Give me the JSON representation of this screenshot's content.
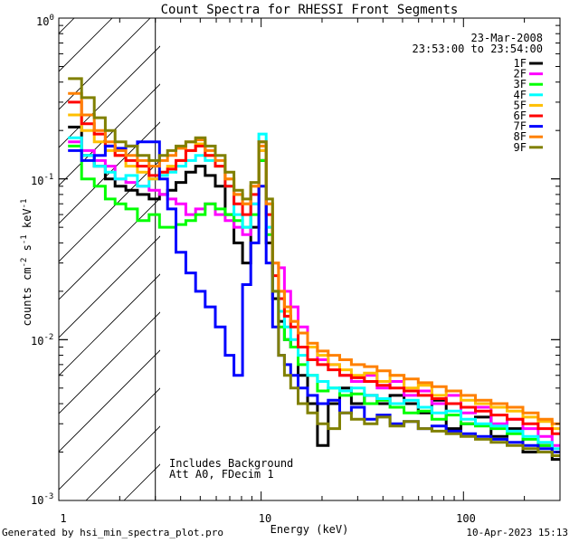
{
  "chart_data": {
    "type": "line",
    "title": "Count Spectra for RHESSI Front Segments",
    "xlabel": "Energy (keV)",
    "ylabel": "counts cm-2 s-1 keV-1",
    "xscale": "log",
    "yscale": "log",
    "xlim": [
      1,
      300
    ],
    "ylim": [
      0.001,
      1
    ],
    "x_tick_labels": [
      "1",
      "10",
      "100"
    ],
    "y_tick_labels": [
      "10^0",
      "10^-1",
      "10^-2",
      "10^-3"
    ],
    "date": "23-Mar-2008",
    "time_range": "23:53:00 to 23:54:00",
    "annotation_lines": [
      "Includes Background",
      "Att A0, FDecim 1"
    ],
    "hatched_region_keV": [
      1,
      3
    ],
    "legend_position": "top-right",
    "energy_keV": [
      1.2,
      1.4,
      1.6,
      1.8,
      2.0,
      2.3,
      2.6,
      3.0,
      3.3,
      3.6,
      4.0,
      4.5,
      5.0,
      5.6,
      6.3,
      7.0,
      7.7,
      8.5,
      9.3,
      10.2,
      11.0,
      11.8,
      12.6,
      13.5,
      14.5,
      16,
      18,
      20,
      23,
      26,
      30,
      35,
      40,
      47,
      55,
      65,
      75,
      90,
      105,
      125,
      150,
      180,
      215,
      255,
      295
    ],
    "series": [
      {
        "name": "1F",
        "color": "#000000",
        "values": [
          0.21,
          0.14,
          0.12,
          0.1,
          0.09,
          0.085,
          0.08,
          0.075,
          0.08,
          0.085,
          0.095,
          0.11,
          0.12,
          0.105,
          0.09,
          0.06,
          0.04,
          0.03,
          0.05,
          0.13,
          0.04,
          0.018,
          0.013,
          0.01,
          0.009,
          0.006,
          0.004,
          0.0022,
          0.004,
          0.005,
          0.004,
          0.0045,
          0.004,
          0.0045,
          0.004,
          0.0035,
          0.0042,
          0.0028,
          0.003,
          0.0033,
          0.0025,
          0.0028,
          0.002,
          0.0022,
          0.0018
        ]
      },
      {
        "name": "2F",
        "color": "#ff00ff",
        "values": [
          0.17,
          0.15,
          0.13,
          0.12,
          0.1,
          0.095,
          0.09,
          0.085,
          0.08,
          0.075,
          0.07,
          0.06,
          0.065,
          0.07,
          0.06,
          0.055,
          0.05,
          0.045,
          0.07,
          0.15,
          0.05,
          0.03,
          0.028,
          0.02,
          0.016,
          0.012,
          0.009,
          0.0075,
          0.007,
          0.006,
          0.0055,
          0.006,
          0.005,
          0.0055,
          0.0045,
          0.0048,
          0.004,
          0.0045,
          0.0035,
          0.0038,
          0.003,
          0.0032,
          0.0028,
          0.0025,
          0.0022
        ]
      },
      {
        "name": "3F",
        "color": "#00ff00",
        "values": [
          0.16,
          0.1,
          0.09,
          0.075,
          0.07,
          0.065,
          0.055,
          0.06,
          0.05,
          0.05,
          0.052,
          0.055,
          0.06,
          0.07,
          0.065,
          0.06,
          0.055,
          0.05,
          0.06,
          0.13,
          0.045,
          0.02,
          0.012,
          0.01,
          0.009,
          0.007,
          0.006,
          0.0048,
          0.005,
          0.0045,
          0.0046,
          0.004,
          0.0042,
          0.0038,
          0.0035,
          0.0036,
          0.0032,
          0.0034,
          0.003,
          0.0029,
          0.0028,
          0.0026,
          0.0024,
          0.0022,
          0.002
        ]
      },
      {
        "name": "4F",
        "color": "#00ffff",
        "values": [
          0.18,
          0.14,
          0.12,
          0.11,
          0.1,
          0.105,
          0.09,
          0.1,
          0.105,
          0.11,
          0.12,
          0.13,
          0.14,
          0.13,
          0.12,
          0.09,
          0.06,
          0.05,
          0.07,
          0.19,
          0.05,
          0.02,
          0.015,
          0.012,
          0.01,
          0.008,
          0.006,
          0.0055,
          0.005,
          0.0048,
          0.005,
          0.0045,
          0.0043,
          0.004,
          0.0042,
          0.0038,
          0.0035,
          0.0036,
          0.0032,
          0.003,
          0.0029,
          0.0027,
          0.0025,
          0.0023,
          0.0021
        ]
      },
      {
        "name": "5F",
        "color": "#ffbf00",
        "values": [
          0.25,
          0.2,
          0.17,
          0.15,
          0.14,
          0.12,
          0.11,
          0.1,
          0.11,
          0.12,
          0.13,
          0.15,
          0.165,
          0.14,
          0.12,
          0.1,
          0.08,
          0.07,
          0.09,
          0.15,
          0.07,
          0.03,
          0.02,
          0.015,
          0.013,
          0.011,
          0.009,
          0.008,
          0.007,
          0.0065,
          0.006,
          0.0062,
          0.0055,
          0.006,
          0.005,
          0.0052,
          0.0045,
          0.0048,
          0.0042,
          0.004,
          0.0038,
          0.0036,
          0.0033,
          0.0031,
          0.0028
        ]
      },
      {
        "name": "6F",
        "color": "#ff0000",
        "values": [
          0.3,
          0.22,
          0.19,
          0.16,
          0.14,
          0.13,
          0.12,
          0.105,
          0.11,
          0.115,
          0.13,
          0.15,
          0.16,
          0.14,
          0.12,
          0.09,
          0.07,
          0.06,
          0.08,
          0.17,
          0.06,
          0.025,
          0.018,
          0.014,
          0.012,
          0.009,
          0.0075,
          0.007,
          0.0065,
          0.006,
          0.0058,
          0.0055,
          0.0052,
          0.005,
          0.0048,
          0.0045,
          0.0043,
          0.004,
          0.0038,
          0.0036,
          0.0034,
          0.0032,
          0.003,
          0.0028,
          0.0026
        ]
      },
      {
        "name": "7F",
        "color": "#0000ff",
        "values": [
          0.15,
          0.13,
          0.14,
          0.16,
          0.155,
          0.16,
          0.17,
          0.17,
          0.1,
          0.065,
          0.035,
          0.026,
          0.02,
          0.016,
          0.012,
          0.008,
          0.006,
          0.022,
          0.04,
          0.09,
          0.03,
          0.012,
          0.008,
          0.007,
          0.006,
          0.005,
          0.0045,
          0.004,
          0.0042,
          0.0035,
          0.0038,
          0.0032,
          0.0034,
          0.003,
          0.0031,
          0.0028,
          0.0029,
          0.0027,
          0.0026,
          0.0025,
          0.0024,
          0.0023,
          0.0022,
          0.0021,
          0.002
        ]
      },
      {
        "name": "8F",
        "color": "#ff8000",
        "values": [
          0.34,
          0.25,
          0.2,
          0.17,
          0.15,
          0.14,
          0.13,
          0.12,
          0.13,
          0.14,
          0.155,
          0.17,
          0.175,
          0.15,
          0.13,
          0.1,
          0.08,
          0.07,
          0.09,
          0.16,
          0.07,
          0.03,
          0.02,
          0.016,
          0.013,
          0.011,
          0.0095,
          0.0085,
          0.008,
          0.0075,
          0.007,
          0.0068,
          0.0064,
          0.006,
          0.0057,
          0.0054,
          0.0051,
          0.0048,
          0.0045,
          0.0042,
          0.004,
          0.0038,
          0.0035,
          0.0032,
          0.003
        ]
      },
      {
        "name": "9F",
        "color": "#808000",
        "values": [
          0.42,
          0.32,
          0.24,
          0.2,
          0.17,
          0.16,
          0.14,
          0.13,
          0.14,
          0.15,
          0.16,
          0.17,
          0.18,
          0.16,
          0.14,
          0.11,
          0.085,
          0.075,
          0.095,
          0.17,
          0.075,
          0.02,
          0.008,
          0.006,
          0.005,
          0.004,
          0.0035,
          0.003,
          0.0028,
          0.0035,
          0.0032,
          0.003,
          0.0033,
          0.0029,
          0.0031,
          0.0028,
          0.0027,
          0.0026,
          0.0025,
          0.0024,
          0.0023,
          0.0022,
          0.0021,
          0.002,
          0.0019
        ]
      }
    ]
  },
  "footer": {
    "left": "Generated by hsi_min_spectra_plot.pro",
    "right": "10-Apr-2023 15:13"
  }
}
